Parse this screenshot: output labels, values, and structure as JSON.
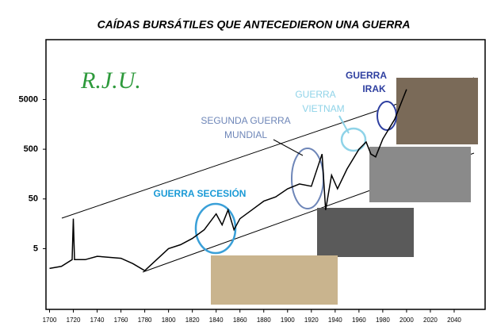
{
  "chart_data": {
    "type": "line",
    "title": "CAÍDAS BURSÁTILES QUE ANTECEDIERON UNA GUERRA",
    "x": [
      1700,
      1710,
      1719,
      1720,
      1721,
      1730,
      1740,
      1760,
      1770,
      1780,
      1790,
      1800,
      1810,
      1820,
      1830,
      1840,
      1845,
      1850,
      1855,
      1860,
      1870,
      1880,
      1890,
      1900,
      1910,
      1920,
      1929,
      1932,
      1937,
      1942,
      1950,
      1960,
      1966,
      1970,
      1974,
      1980,
      1990,
      2000
    ],
    "values": [
      2,
      2.2,
      3,
      20,
      3,
      3,
      3.5,
      3.2,
      2.5,
      1.8,
      3,
      5,
      6,
      8,
      12,
      25,
      15,
      30,
      12,
      20,
      30,
      45,
      55,
      80,
      100,
      90,
      400,
      30,
      150,
      80,
      200,
      500,
      700,
      400,
      350,
      800,
      2000,
      8000
    ],
    "color": "#000000",
    "log_scale": true,
    "xlim": [
      1697,
      2066
    ],
    "ylim": [
      0.3,
      80000
    ],
    "xticks": [
      1700,
      1720,
      1740,
      1760,
      1780,
      1800,
      1820,
      1840,
      1860,
      1880,
      1900,
      1920,
      1940,
      1960,
      1980,
      2000,
      2020,
      2040
    ],
    "yticks": [
      5,
      50,
      500,
      5000
    ],
    "annotations": [
      {
        "lines": [
          "R.J.U."
        ],
        "color": "#2e9a3c"
      },
      {
        "lines": [
          "GUERRA SECESIÓN"
        ],
        "color": "#1a9ad6"
      },
      {
        "lines": [
          "SEGUNDA GUERRA",
          "MUNDIAL"
        ],
        "color": "#6e86b8"
      },
      {
        "lines": [
          "GUERRA",
          "VIETNAM"
        ],
        "color": "#8fd3e8"
      },
      {
        "lines": [
          "GUERRA",
          "IRAK"
        ],
        "color": "#2e3fa0"
      }
    ]
  }
}
